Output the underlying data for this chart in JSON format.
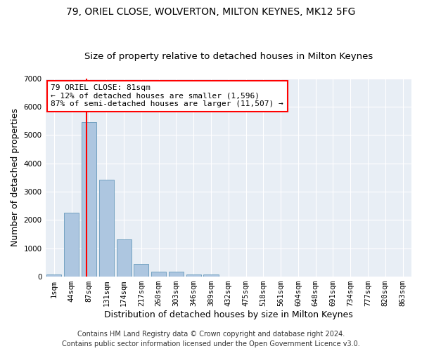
{
  "title1": "79, ORIEL CLOSE, WOLVERTON, MILTON KEYNES, MK12 5FG",
  "title2": "Size of property relative to detached houses in Milton Keynes",
  "xlabel": "Distribution of detached houses by size in Milton Keynes",
  "ylabel": "Number of detached properties",
  "footer1": "Contains HM Land Registry data © Crown copyright and database right 2024.",
  "footer2": "Contains public sector information licensed under the Open Government Licence v3.0.",
  "bar_labels": [
    "1sqm",
    "44sqm",
    "87sqm",
    "131sqm",
    "174sqm",
    "217sqm",
    "260sqm",
    "303sqm",
    "346sqm",
    "389sqm",
    "432sqm",
    "475sqm",
    "518sqm",
    "561sqm",
    "604sqm",
    "648sqm",
    "691sqm",
    "734sqm",
    "777sqm",
    "820sqm",
    "863sqm"
  ],
  "bar_values": [
    80,
    2260,
    5460,
    3420,
    1310,
    460,
    185,
    175,
    80,
    65,
    0,
    0,
    0,
    0,
    0,
    0,
    0,
    0,
    0,
    0,
    0
  ],
  "bar_color": "#adc6e0",
  "bar_edge_color": "#6699bb",
  "annotation_line1": "79 ORIEL CLOSE: 81sqm",
  "annotation_line2": "← 12% of detached houses are smaller (1,596)",
  "annotation_line3": "87% of semi-detached houses are larger (11,507) →",
  "annotation_box_color": "white",
  "annotation_box_edge_color": "red",
  "vline_color": "red",
  "vline_pos": 1.86,
  "ylim": [
    0,
    7000
  ],
  "yticks": [
    0,
    1000,
    2000,
    3000,
    4000,
    5000,
    6000,
    7000
  ],
  "bg_color": "#e8eef5",
  "grid_color": "white",
  "title1_fontsize": 10,
  "title2_fontsize": 9.5,
  "xlabel_fontsize": 9,
  "ylabel_fontsize": 9,
  "tick_fontsize": 7.5,
  "footer_fontsize": 7,
  "annot_fontsize": 8
}
